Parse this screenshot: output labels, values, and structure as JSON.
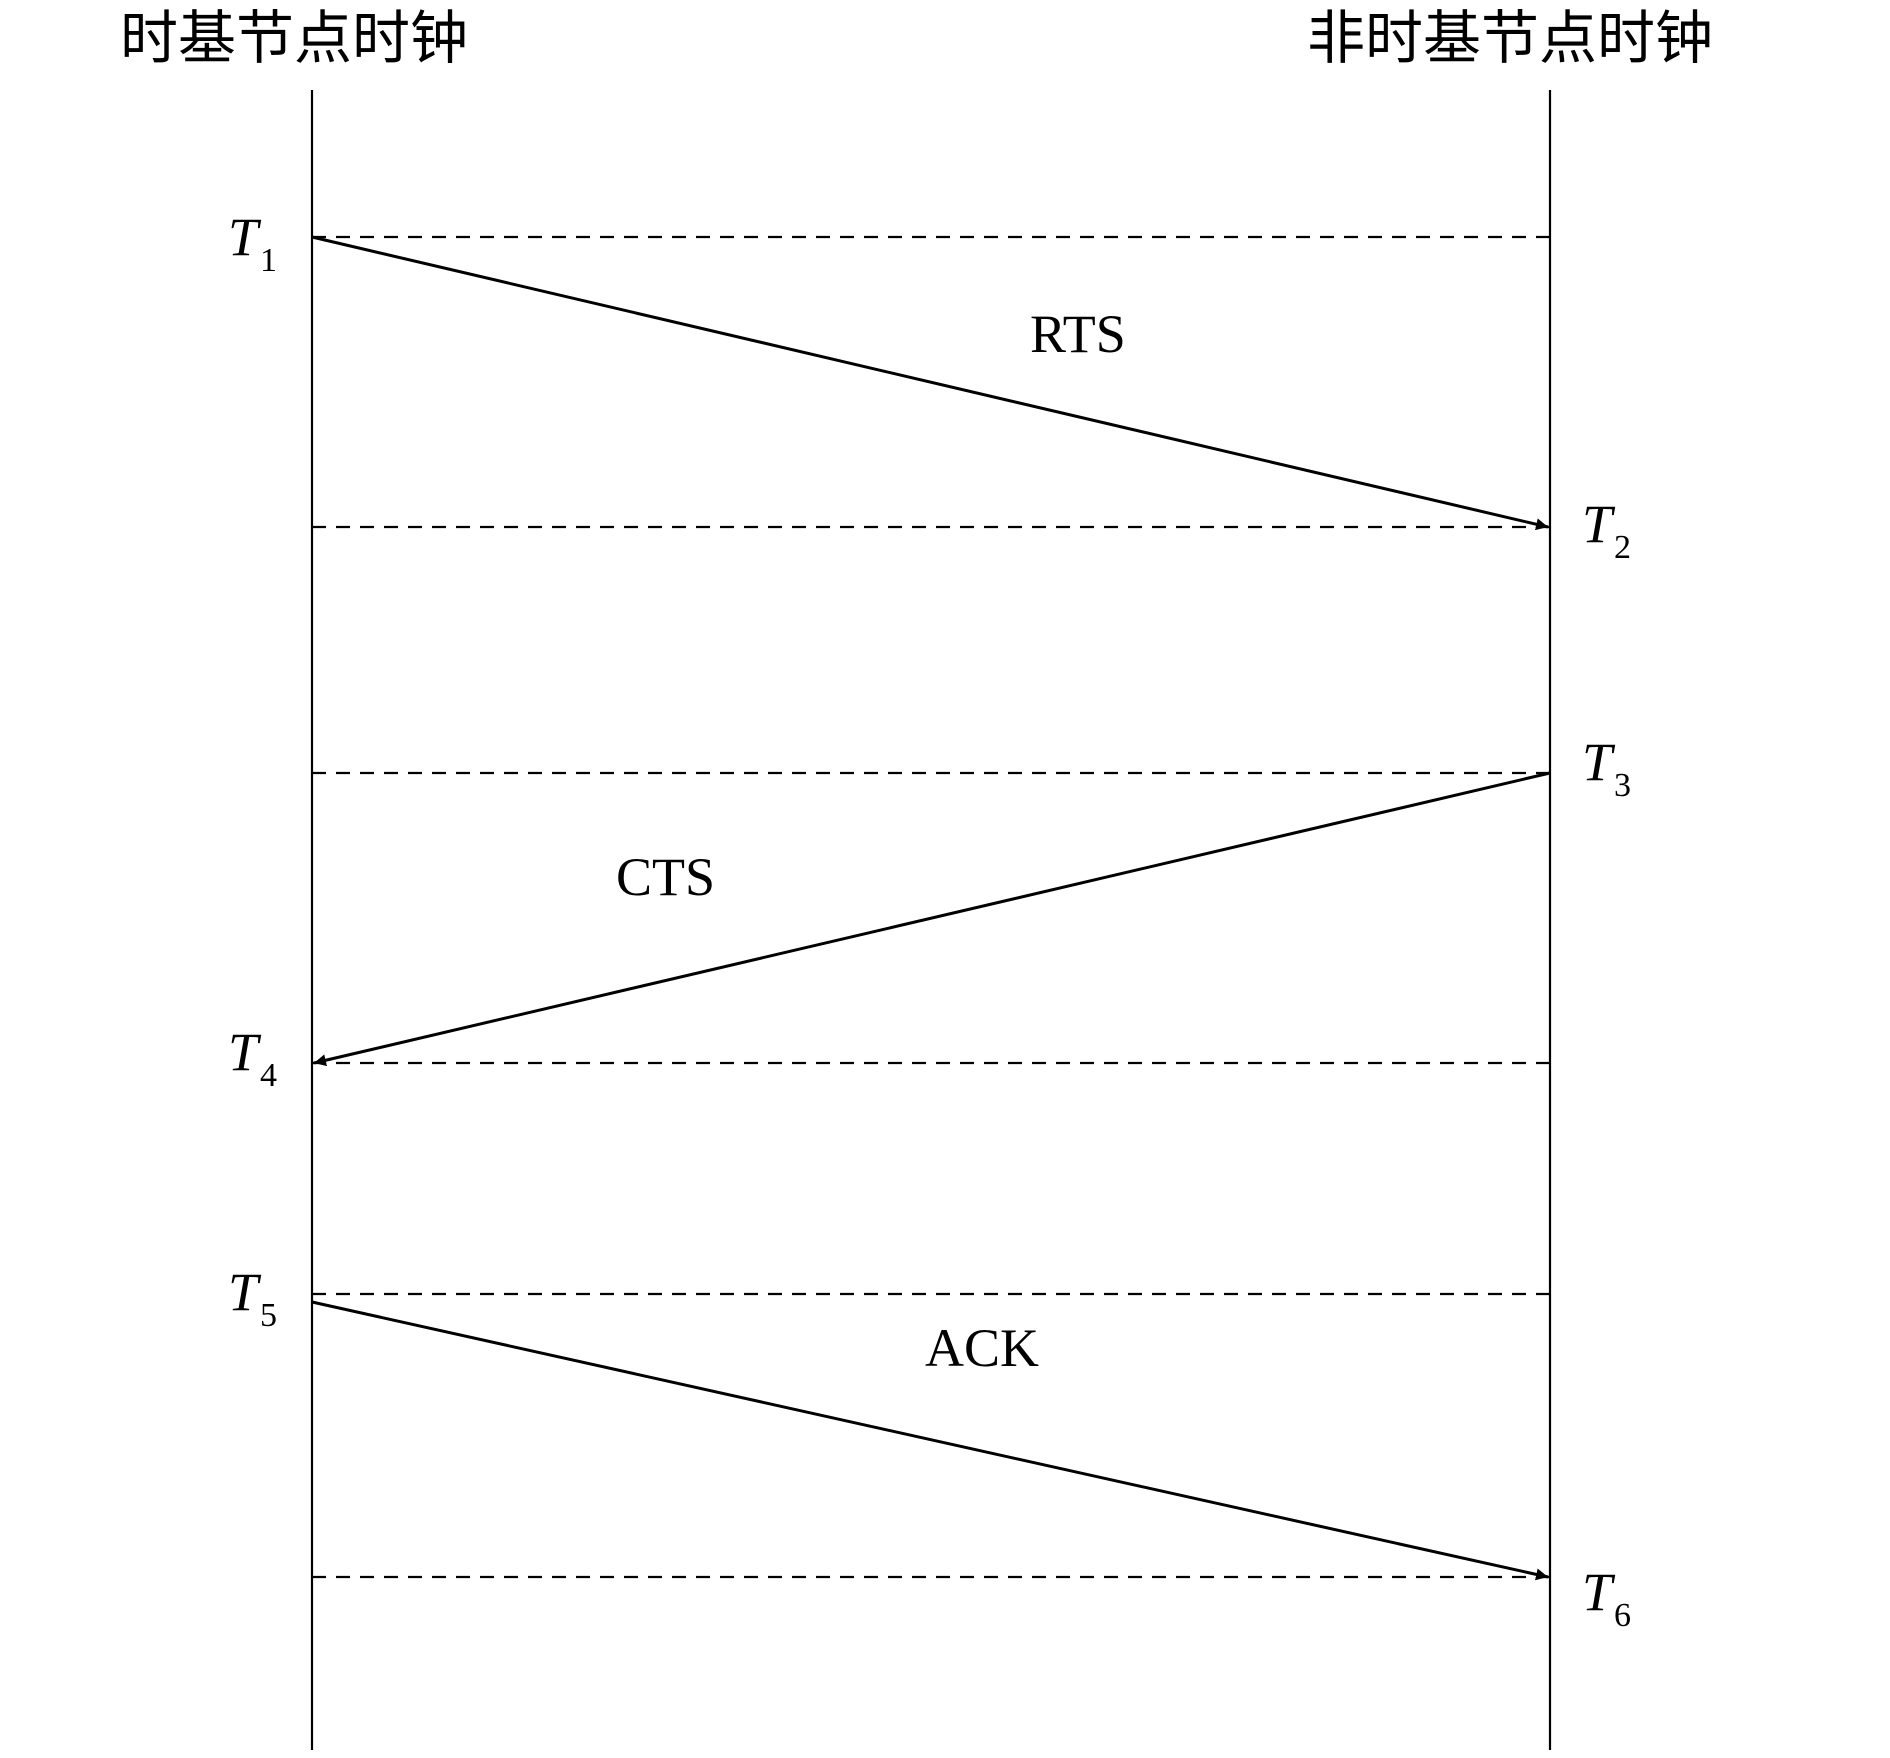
{
  "headers": {
    "left": "时基节点时钟",
    "right": "非时基节点时钟"
  },
  "time_marks": [
    {
      "main": "T",
      "sub": "1"
    },
    {
      "main": "T",
      "sub": "2"
    },
    {
      "main": "T",
      "sub": "3"
    },
    {
      "main": "T",
      "sub": "4"
    },
    {
      "main": "T",
      "sub": "5"
    },
    {
      "main": "T",
      "sub": "6"
    }
  ],
  "messages": [
    {
      "label": "RTS"
    },
    {
      "label": "CTS"
    },
    {
      "label": "ACK"
    }
  ],
  "colors": {
    "line": "#000000",
    "background": "#ffffff"
  }
}
